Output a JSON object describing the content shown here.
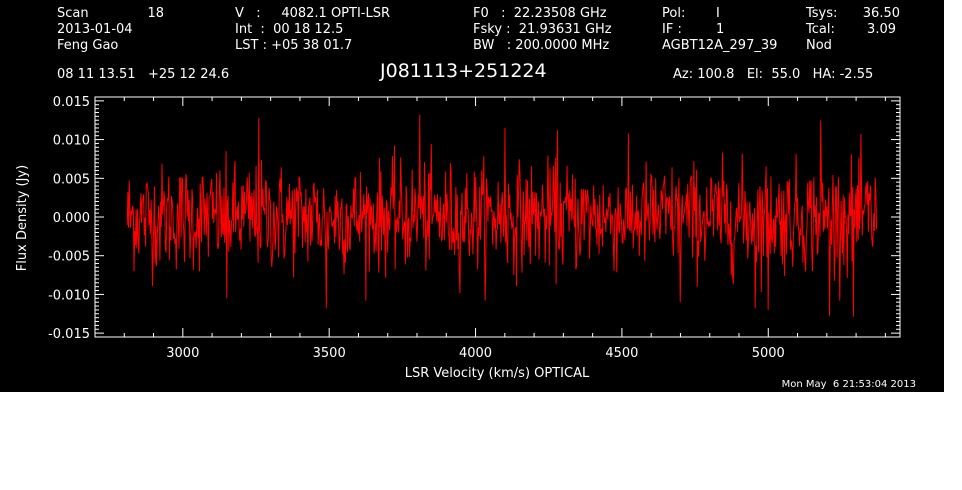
{
  "header": {
    "col1": [
      {
        "label": "Scan",
        "value": "18"
      },
      {
        "text": "2013-01-04"
      },
      {
        "text": "Feng Gao"
      }
    ],
    "col2": [
      "V   :     4082.1 OPTI-LSR",
      "Int  :  00 18 12.5",
      "LST : +05 38 01.7"
    ],
    "col3": [
      "F0   :  22.23508 GHz",
      "Fsky :  21.93631 GHz",
      "BW   : 200.0000 MHz"
    ],
    "col4": [
      {
        "label": "Pol:",
        "value": "I"
      },
      {
        "label": "IF :",
        "value": "1"
      },
      {
        "text": "AGBT12A_297_39"
      }
    ],
    "col5": [
      {
        "label": "Tsys:",
        "value": "36.50"
      },
      {
        "label": "Tcal:",
        "value": "3.09"
      },
      {
        "text": "Nod"
      }
    ],
    "coords": "08 11 13.51   +25 12 24.6",
    "source": "J081113+251224",
    "pointing": "Az: 100.8   El:  55.0   HA: -2.55"
  },
  "timestamp": "Mon May  6 21:53:04 2013",
  "chart_data": {
    "type": "line",
    "title": "",
    "xlabel": "LSR Velocity (km/s) OPTICAL",
    "ylabel": "Flux Density (Jy)",
    "xlim": [
      2700,
      5450
    ],
    "ylim": [
      -0.0155,
      0.0155
    ],
    "x_ticks": [
      3000,
      3500,
      4000,
      4500,
      5000
    ],
    "x_tick_labels": [
      "3000",
      "3500",
      "4000",
      "4500",
      "5000"
    ],
    "y_ticks": [
      -0.015,
      -0.01,
      -0.005,
      0.0,
      0.005,
      0.01,
      0.015
    ],
    "y_tick_labels": [
      "-0.015",
      "-0.010",
      "-0.005",
      "0.000",
      "0.005",
      "0.010",
      "0.015"
    ],
    "grid": false,
    "series": [
      {
        "color": "#ff0000",
        "x_start": 2810,
        "x_end": 5370,
        "points": 1100,
        "mean": 0.0,
        "noise_sigma": 0.004,
        "notable_points": [
          {
            "x": 3810,
            "y": 0.0132
          },
          {
            "x": 3260,
            "y": 0.0128
          },
          {
            "x": 5180,
            "y": 0.0125
          },
          {
            "x": 5210,
            "y": -0.0128
          },
          {
            "x": 5290,
            "y": -0.0129
          },
          {
            "x": 4955,
            "y": -0.0118
          },
          {
            "x": 3490,
            "y": -0.0118
          },
          {
            "x": 3150,
            "y": -0.0105
          },
          {
            "x": 4700,
            "y": -0.011
          },
          {
            "x": 5000,
            "y": -0.012
          },
          {
            "x": 4100,
            "y": 0.0115
          },
          {
            "x": 4280,
            "y": 0.0112
          }
        ]
      }
    ]
  },
  "colors": {
    "background": "#000000",
    "axes": "#ffffff",
    "trace": "#ff0000"
  }
}
